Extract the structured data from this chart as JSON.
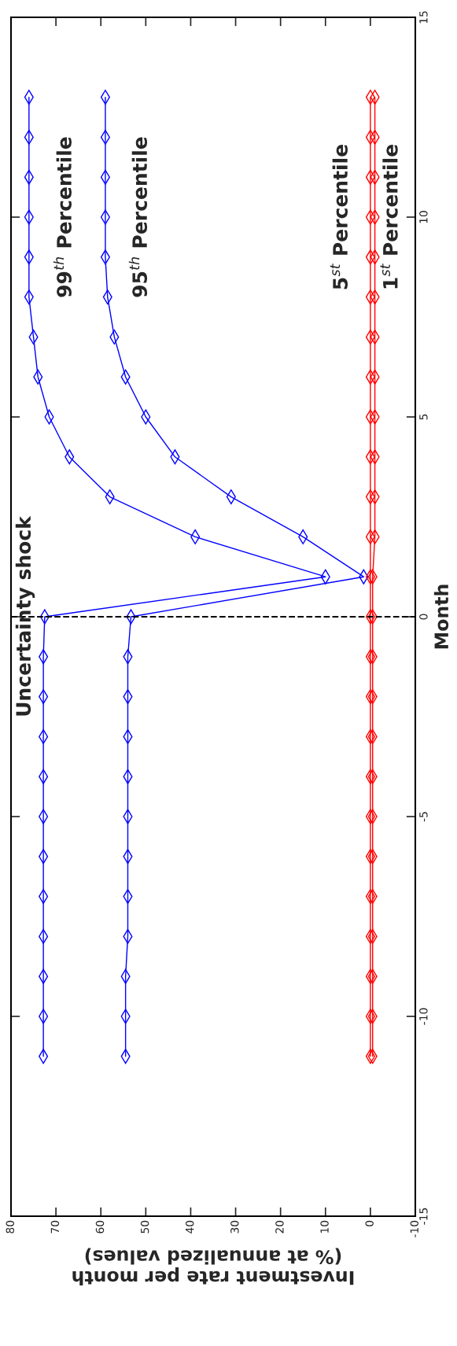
{
  "chart_data": {
    "type": "line",
    "xlabel": "Investment rate per month\n(% at annualized values)",
    "ylabel": "Month",
    "series": [
      {
        "name": "99$^{th}$ Percentile",
        "color": "#0000ff",
        "x": [
          72.8,
          72.8,
          72.8,
          72.8,
          72.8,
          72.8,
          72.8,
          72.8,
          72.8,
          72.8,
          72.8,
          72.5,
          10,
          39,
          58,
          67,
          71.5,
          74,
          75,
          76,
          76,
          76,
          76,
          76,
          76
        ],
        "values": [
          -11,
          -10,
          -9,
          -8,
          -7,
          -6,
          -5,
          -4,
          -3,
          -2,
          -1,
          0,
          1,
          2,
          3,
          4,
          5,
          6,
          7,
          8,
          9,
          10,
          11,
          12,
          13
        ]
      },
      {
        "name": "95$^{th}$ Percentile",
        "color": "#0000ff",
        "x": [
          54.5,
          54.5,
          54.5,
          54,
          54,
          54,
          54,
          54,
          54,
          54,
          54,
          53.3,
          1.5,
          15,
          31,
          43.5,
          50,
          54.5,
          57,
          58.5,
          59,
          59,
          59,
          59,
          59
        ],
        "values": [
          -11,
          -10,
          -9,
          -8,
          -7,
          -6,
          -5,
          -4,
          -3,
          -2,
          -1,
          0,
          1,
          2,
          3,
          4,
          5,
          6,
          7,
          8,
          9,
          10,
          11,
          12,
          13
        ]
      },
      {
        "name": "5$^{st}$ Percentile",
        "color": "#ff0000",
        "x": [
          0,
          0,
          0,
          0,
          0,
          0,
          0,
          0,
          0,
          0,
          0,
          0,
          0,
          0,
          0,
          0,
          0,
          0,
          0,
          0,
          0,
          0,
          0,
          0,
          0
        ],
        "values": [
          -11,
          -10,
          -9,
          -8,
          -7,
          -6,
          -5,
          -4,
          -3,
          -2,
          -1,
          0,
          1,
          2,
          3,
          4,
          5,
          6,
          7,
          8,
          9,
          10,
          11,
          12,
          13
        ]
      },
      {
        "name": "1$^{st}$ Percentile",
        "color": "#ff0000",
        "x": [
          -0.5,
          -0.5,
          -0.5,
          -0.5,
          -0.5,
          -0.5,
          -0.5,
          -0.5,
          -0.5,
          -0.5,
          -0.5,
          -0.5,
          -0.5,
          -1,
          -1,
          -1,
          -1,
          -1,
          -1,
          -1,
          -1,
          -1,
          -1,
          -1,
          -1
        ],
        "values": [
          -11,
          -10,
          -9,
          -8,
          -7,
          -6,
          -5,
          -4,
          -3,
          -2,
          -1,
          0,
          1,
          2,
          3,
          4,
          5,
          6,
          7,
          8,
          9,
          10,
          11,
          12,
          13
        ]
      }
    ],
    "xlim": [
      80,
      -10
    ],
    "xticks": [
      80,
      70,
      60,
      50,
      40,
      30,
      20,
      10,
      0,
      -10
    ],
    "ylim": [
      -15,
      15
    ],
    "yticks": [
      -15,
      -10,
      -5,
      0,
      5,
      10,
      15
    ],
    "marker": "diamond",
    "line_style": "solid",
    "ref_lines": [
      {
        "axis": "y",
        "value": 0,
        "label": "Uncertainty shock",
        "color": "#000000",
        "line_style": "dashed"
      }
    ]
  }
}
